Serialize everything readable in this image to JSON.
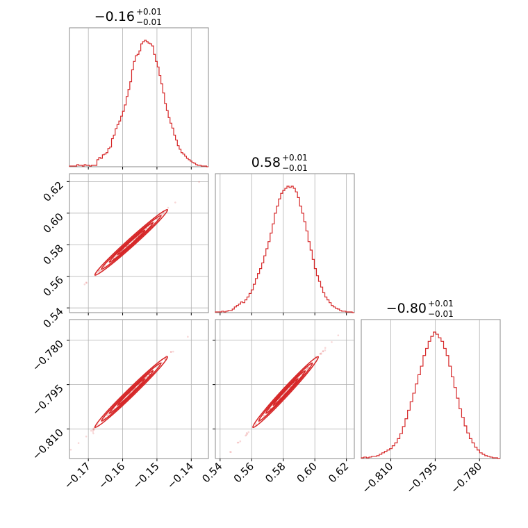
{
  "chart_data": {
    "type": "corner",
    "color": "#d62728",
    "grid": true,
    "parameters": [
      {
        "title": {
          "value": "−0.16",
          "plus": "+0.01",
          "minus": "−0.01"
        },
        "range": [
          -0.1755,
          -0.135
        ],
        "ticks": [
          {
            "v": -0.17,
            "label": "−0.17"
          },
          {
            "v": -0.16,
            "label": "−0.16"
          },
          {
            "v": -0.15,
            "label": "−0.15"
          },
          {
            "v": -0.14,
            "label": "−0.14"
          }
        ],
        "hist": [
          1,
          1,
          1,
          1,
          3,
          2,
          2,
          1,
          3,
          2,
          2,
          1,
          2,
          2,
          2,
          10,
          13,
          12,
          17,
          18,
          20,
          26,
          28,
          40,
          45,
          54,
          60,
          65,
          72,
          79,
          88,
          100,
          110,
          121,
          138,
          150,
          158,
          160,
          165,
          175,
          178,
          180,
          178,
          176,
          175,
          172,
          160,
          150,
          142,
          130,
          118,
          105,
          90,
          80,
          70,
          62,
          55,
          45,
          38,
          30,
          25,
          20,
          18,
          15,
          12,
          10,
          8,
          6,
          5,
          3,
          2,
          2,
          1,
          1,
          1,
          0
        ]
      },
      {
        "title": {
          "value": "0.58",
          "plus": "+0.01",
          "minus": "−0.01"
        },
        "range": [
          0.537,
          0.625
        ],
        "ticks": [
          {
            "v": 0.54,
            "label": "0.54"
          },
          {
            "v": 0.56,
            "label": "0.56"
          },
          {
            "v": 0.58,
            "label": "0.58"
          },
          {
            "v": 0.6,
            "label": "0.60"
          },
          {
            "v": 0.62,
            "label": "0.62"
          }
        ],
        "hist": [
          1,
          1,
          1,
          2,
          1,
          2,
          3,
          3,
          5,
          8,
          10,
          12,
          15,
          14,
          18,
          22,
          27,
          32,
          40,
          48,
          55,
          62,
          70,
          80,
          90,
          100,
          112,
          125,
          140,
          150,
          160,
          168,
          172,
          175,
          178,
          176,
          178,
          175,
          170,
          162,
          150,
          140,
          128,
          115,
          100,
          88,
          75,
          62,
          52,
          44,
          36,
          28,
          22,
          18,
          14,
          10,
          8,
          6,
          5,
          3,
          2,
          2,
          1,
          1,
          1,
          0
        ]
      },
      {
        "title": {
          "value": "−0.80",
          "plus": "+0.01",
          "minus": "−0.01"
        },
        "range": [
          -0.82,
          -0.773
        ],
        "ticks": [
          {
            "v": -0.81,
            "label": "−0.810"
          },
          {
            "v": -0.795,
            "label": "−0.795"
          },
          {
            "v": -0.78,
            "label": "−0.780"
          }
        ],
        "hist": [
          1,
          2,
          1,
          2,
          3,
          3,
          4,
          6,
          8,
          10,
          12,
          14,
          18,
          22,
          28,
          35,
          45,
          56,
          68,
          80,
          92,
          105,
          118,
          130,
          145,
          155,
          165,
          172,
          178,
          175,
          170,
          165,
          155,
          145,
          130,
          115,
          100,
          85,
          70,
          58,
          46,
          36,
          28,
          22,
          16,
          12,
          8,
          6,
          4,
          3,
          2,
          1,
          1,
          0
        ]
      }
    ],
    "pairs": [
      {
        "row": 1,
        "col": 0,
        "x_param": 0,
        "y_param": 1
      },
      {
        "row": 2,
        "col": 0,
        "x_param": 0,
        "y_param": 2
      },
      {
        "row": 2,
        "col": 1,
        "x_param": 1,
        "y_param": 2
      }
    ]
  }
}
